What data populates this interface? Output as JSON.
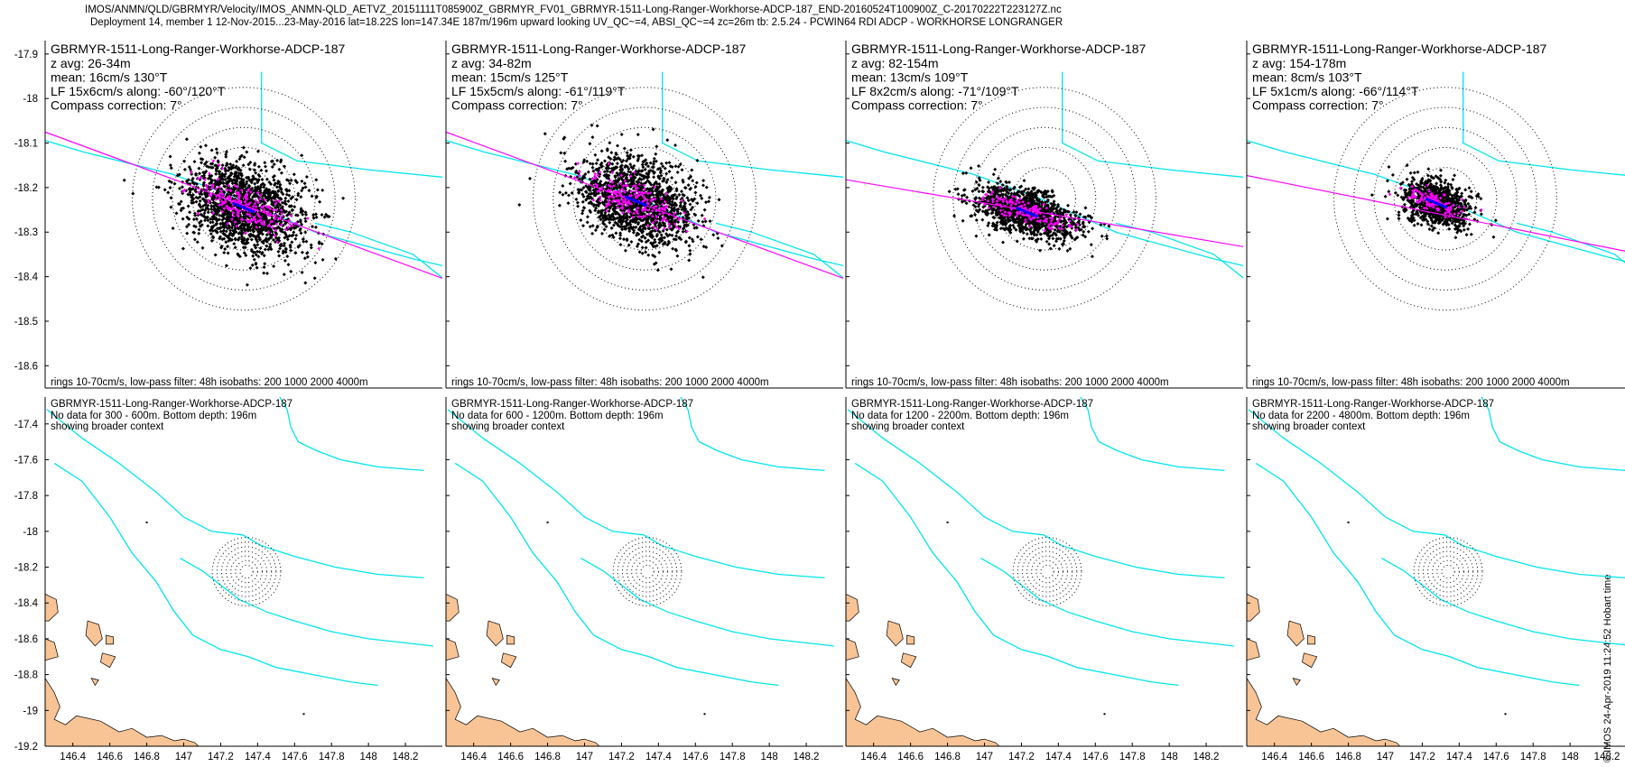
{
  "header": {
    "line1": "IMOS/ANMN/QLD/GBRMYR/Velocity/IMOS_ANMN-QLD_AETVZ_20151111T085900Z_GBRMYR_FV01_GBRMYR-1511-Long-Ranger-Workhorse-ADCP-187_END-20160524T100900Z_C-20170222T223127Z.nc",
    "line2": "Deployment 14, member 1 12-Nov-2015...23-May-2016 lat=18.22S lon=147.34E 187m/196m upward looking UV_QC~=4, ABSI_QC~=4 zc=26m tb: 2.5.24 - PCWIN64 RDI ADCP - WORKHORSE LONGRANGER"
  },
  "side_label": "© IMOS 24-Apr-2019 11:24:52 Hobart time",
  "colors": {
    "scatter": "#000000",
    "lowpass": "#ff00ff",
    "mean": "#0000ff",
    "isobath": "#00e5ee",
    "axis": "#ff00ff",
    "land": "#f8c496"
  },
  "chart_data": [
    {
      "type": "scatter",
      "title": "GBRMYR-1511-Long-Ranger-Workhorse-ADCP-187",
      "lines": [
        "z avg: 26-34m",
        "mean: 16cm/s 130°T",
        "LF 15x6cm/s along: -60°/120°T",
        "Compass correction: 7°"
      ],
      "footer": "rings 10-70cm/s, low-pass filter: 48h isobaths: 200 1000 2000 4000m",
      "ylim": [
        -18.65,
        -17.87
      ],
      "yticks": [
        -17.9,
        -18,
        -18.1,
        -18.2,
        -18.3,
        -18.4,
        -18.5,
        -18.6
      ],
      "cloud": {
        "cx": 147.34,
        "cy": -18.245,
        "a": 0.13,
        "b": 0.085,
        "angle_deg": -25,
        "n": 1600
      },
      "lf": {
        "a": 0.055,
        "b": 0.022,
        "n": 220
      },
      "major_axis": {
        "x": [
          146.88,
          147.83
        ],
        "y": [
          -18.07,
          -18.42
        ]
      },
      "rings": {
        "cx": 147.34,
        "cy": -18.225,
        "radii": [
          0.07,
          0.115,
          0.16,
          0.205,
          0.25
        ],
        "ry_scale": 1.6
      },
      "isobaths": [
        {
          "x": [
            146.6,
            146.78,
            146.98,
            147.18,
            147.32,
            147.5,
            147.72,
            147.98
          ],
          "y": [
            -18.0,
            -18.06,
            -18.12,
            -18.17,
            -18.22,
            -18.3,
            -18.36,
            -18.42
          ]
        },
        {
          "x": [
            147.38,
            147.38,
            147.46,
            147.62,
            147.82,
            147.98
          ],
          "y": [
            -17.94,
            -18.1,
            -18.14,
            -18.16,
            -18.18,
            -18.22
          ]
        },
        {
          "x": [
            147.5,
            147.58,
            147.72,
            147.82
          ],
          "y": [
            -18.28,
            -18.3,
            -18.35,
            -18.43
          ]
        }
      ]
    },
    {
      "type": "scatter",
      "title": "GBRMYR-1511-Long-Ranger-Workhorse-ADCP-187",
      "lines": [
        "z avg: 34-82m",
        "mean: 15cm/s 125°T",
        "LF 15x5cm/s along: -61°/119°T",
        "Compass correction: 7°"
      ],
      "footer": "rings 10-70cm/s, low-pass filter: 48h isobaths: 200 1000 2000 4000m",
      "cloud": {
        "cx": 147.32,
        "cy": -18.23,
        "a": 0.13,
        "b": 0.08,
        "angle_deg": -25,
        "n": 1500
      },
      "lf": {
        "a": 0.055,
        "b": 0.02,
        "n": 200
      },
      "major_axis": {
        "x": [
          146.88,
          147.83
        ],
        "y": [
          -18.07,
          -18.42
        ]
      },
      "rings": {
        "cx": 147.34,
        "cy": -18.225,
        "radii": [
          0.07,
          0.115,
          0.16,
          0.205,
          0.25
        ],
        "ry_scale": 1.6
      },
      "isobaths": [
        {
          "x": [
            146.6,
            146.78,
            146.98,
            147.18,
            147.32,
            147.5,
            147.72,
            147.98
          ],
          "y": [
            -18.0,
            -18.06,
            -18.12,
            -18.17,
            -18.22,
            -18.3,
            -18.36,
            -18.42
          ]
        },
        {
          "x": [
            147.38,
            147.38,
            147.46,
            147.62,
            147.82,
            147.98
          ],
          "y": [
            -17.94,
            -18.1,
            -18.14,
            -18.16,
            -18.18,
            -18.22
          ]
        },
        {
          "x": [
            147.5,
            147.58,
            147.72,
            147.82
          ],
          "y": [
            -18.28,
            -18.3,
            -18.35,
            -18.43
          ]
        }
      ]
    },
    {
      "type": "scatter",
      "title": "GBRMYR-1511-Long-Ranger-Workhorse-ADCP-187",
      "lines": [
        "z avg: 82-154m",
        "mean: 13cm/s 109°T",
        "LF 8x2cm/s along: -71°/109°T",
        "Compass correction: 7°"
      ],
      "footer": "rings 10-70cm/s, low-pass filter: 48h isobaths: 200 1000 2000 4000m",
      "cloud": {
        "cx": 147.3,
        "cy": -18.255,
        "a": 0.11,
        "b": 0.045,
        "angle_deg": -18,
        "n": 1200
      },
      "lf": {
        "a": 0.05,
        "b": 0.012,
        "n": 160
      },
      "major_axis": {
        "x": [
          146.88,
          147.83
        ],
        "y": [
          -18.18,
          -18.34
        ]
      },
      "rings": {
        "cx": 147.34,
        "cy": -18.225,
        "radii": [
          0.07,
          0.115,
          0.16,
          0.205,
          0.25
        ],
        "ry_scale": 1.6
      },
      "isobaths": [
        {
          "x": [
            146.6,
            146.78,
            146.98,
            147.18,
            147.32,
            147.5,
            147.72,
            147.98
          ],
          "y": [
            -18.0,
            -18.06,
            -18.12,
            -18.17,
            -18.22,
            -18.3,
            -18.36,
            -18.42
          ]
        },
        {
          "x": [
            147.38,
            147.38,
            147.46,
            147.62,
            147.82,
            147.98
          ],
          "y": [
            -17.94,
            -18.1,
            -18.14,
            -18.16,
            -18.18,
            -18.22
          ]
        },
        {
          "x": [
            147.5,
            147.58,
            147.72,
            147.82
          ],
          "y": [
            -18.28,
            -18.3,
            -18.35,
            -18.43
          ]
        }
      ]
    },
    {
      "type": "scatter",
      "title": "GBRMYR-1511-Long-Ranger-Workhorse-ADCP-187",
      "lines": [
        "z avg: 154-178m",
        "mean: 8cm/s 103°T",
        "LF 5x1cm/s along: -66°/114°T",
        "Compass correction: 7°"
      ],
      "footer": "rings 10-70cm/s, low-pass filter: 48h isobaths: 200 1000 2000 4000m",
      "cloud": {
        "cx": 147.32,
        "cy": -18.235,
        "a": 0.075,
        "b": 0.045,
        "angle_deg": -20,
        "n": 900
      },
      "lf": {
        "a": 0.035,
        "b": 0.01,
        "n": 120
      },
      "major_axis": {
        "x": [
          146.88,
          147.83
        ],
        "y": [
          -18.17,
          -18.36
        ]
      },
      "rings": {
        "cx": 147.34,
        "cy": -18.225,
        "radii": [
          0.07,
          0.115,
          0.16,
          0.205,
          0.25
        ],
        "ry_scale": 1.6
      },
      "isobaths": [
        {
          "x": [
            146.6,
            146.78,
            146.98,
            147.18,
            147.32,
            147.5,
            147.72,
            147.98
          ],
          "y": [
            -18.0,
            -18.06,
            -18.12,
            -18.17,
            -18.22,
            -18.3,
            -18.36,
            -18.42
          ]
        },
        {
          "x": [
            147.38,
            147.38,
            147.46,
            147.62,
            147.82,
            147.98
          ],
          "y": [
            -17.94,
            -18.1,
            -18.14,
            -18.16,
            -18.18,
            -18.22
          ]
        },
        {
          "x": [
            147.5,
            147.58,
            147.72,
            147.82
          ],
          "y": [
            -18.28,
            -18.3,
            -18.35,
            -18.43
          ]
        }
      ]
    },
    {
      "type": "map",
      "title": "GBRMYR-1511-Long-Ranger-Workhorse-ADCP-187",
      "lines": [
        "No data for 300 - 600m. Bottom depth: 196m",
        "showing broader context"
      ],
      "xlim": [
        146.25,
        148.4
      ],
      "ylim": [
        -19.2,
        -17.25
      ],
      "xticks": [
        146.4,
        146.6,
        146.8,
        147,
        147.2,
        147.4,
        147.6,
        147.8,
        148,
        148.2
      ],
      "yticks": [
        -17.4,
        -17.6,
        -17.8,
        -18,
        -18.2,
        -18.4,
        -18.6,
        -18.8,
        -19,
        -19.2
      ],
      "rings": {
        "cx": 147.34,
        "cy": -18.225,
        "radii": [
          0.035,
          0.06,
          0.085,
          0.11,
          0.135,
          0.16,
          0.185
        ],
        "ry_scale": 1.6
      },
      "isobaths": [
        {
          "x": [
            146.26,
            146.45,
            146.65,
            146.85,
            147.0,
            147.15,
            147.32,
            147.42,
            147.6,
            147.82,
            148.05,
            148.3
          ],
          "y": [
            -17.32,
            -17.48,
            -17.62,
            -17.78,
            -17.92,
            -18.0,
            -18.02,
            -18.08,
            -18.14,
            -18.2,
            -18.24,
            -18.26
          ]
        },
        {
          "x": [
            146.3,
            146.45,
            146.6,
            146.72,
            146.85,
            146.95,
            147.05,
            147.2,
            147.35,
            147.5,
            147.7,
            147.9,
            148.05
          ],
          "y": [
            -17.62,
            -17.72,
            -17.92,
            -18.12,
            -18.28,
            -18.45,
            -18.58,
            -18.66,
            -18.7,
            -18.76,
            -18.8,
            -18.84,
            -18.86
          ]
        },
        {
          "x": [
            146.98,
            147.1,
            147.2,
            147.3,
            147.45,
            147.6,
            147.8,
            148.0,
            148.35
          ],
          "y": [
            -18.15,
            -18.22,
            -18.3,
            -18.38,
            -18.45,
            -18.5,
            -18.56,
            -18.6,
            -18.64
          ]
        },
        {
          "x": [
            147.52,
            147.56,
            147.58,
            147.62,
            147.72,
            147.85,
            148.05,
            148.3
          ],
          "y": [
            -17.25,
            -17.32,
            -17.42,
            -17.5,
            -17.55,
            -17.6,
            -17.64,
            -17.66
          ]
        }
      ],
      "land": [
        {
          "x": [
            146.25,
            146.3,
            146.33,
            146.3,
            146.36,
            146.42,
            146.55,
            146.65,
            146.72,
            146.8,
            146.88,
            146.95,
            147.0,
            147.06,
            147.08,
            146.25
          ],
          "y": [
            -18.82,
            -18.9,
            -18.98,
            -19.05,
            -19.08,
            -19.03,
            -19.06,
            -19.12,
            -19.1,
            -19.15,
            -19.14,
            -19.17,
            -19.16,
            -19.18,
            -19.2,
            -19.2
          ]
        },
        {
          "x": [
            146.25,
            146.31,
            146.32,
            146.27,
            146.25
          ],
          "y": [
            -18.35,
            -18.38,
            -18.45,
            -18.5,
            -18.5
          ]
        },
        {
          "x": [
            146.25,
            146.3,
            146.32,
            146.25
          ],
          "y": [
            -18.6,
            -18.62,
            -18.7,
            -18.72
          ]
        },
        {
          "x": [
            146.48,
            146.54,
            146.56,
            146.52,
            146.47
          ],
          "y": [
            -18.5,
            -18.52,
            -18.6,
            -18.64,
            -18.58
          ]
        },
        {
          "x": [
            146.58,
            146.62,
            146.62,
            146.58
          ],
          "y": [
            -18.58,
            -18.59,
            -18.63,
            -18.63
          ]
        },
        {
          "x": [
            146.56,
            146.63,
            146.6,
            146.55
          ],
          "y": [
            -18.68,
            -18.7,
            -18.76,
            -18.73
          ]
        },
        {
          "x": [
            146.5,
            146.54,
            146.52
          ],
          "y": [
            -18.82,
            -18.83,
            -18.86
          ]
        }
      ],
      "specks": {
        "x": [
          146.8,
          147.65
        ],
        "y": [
          -17.95,
          -19.02
        ]
      }
    },
    {
      "type": "map",
      "title": "GBRMYR-1511-Long-Ranger-Workhorse-ADCP-187",
      "lines": [
        "No data for 600 - 1200m. Bottom depth: 196m",
        "showing broader context"
      ]
    },
    {
      "type": "map",
      "title": "GBRMYR-1511-Long-Ranger-Workhorse-ADCP-187",
      "lines": [
        "No data for 1200 - 2200m. Bottom depth: 196m",
        "showing broader context"
      ]
    },
    {
      "type": "map",
      "title": "GBRMYR-1511-Long-Ranger-Workhorse-ADCP-187",
      "lines": [
        "No data for 2200 - 4800m. Bottom depth: 196m",
        "showing broader context"
      ]
    }
  ]
}
